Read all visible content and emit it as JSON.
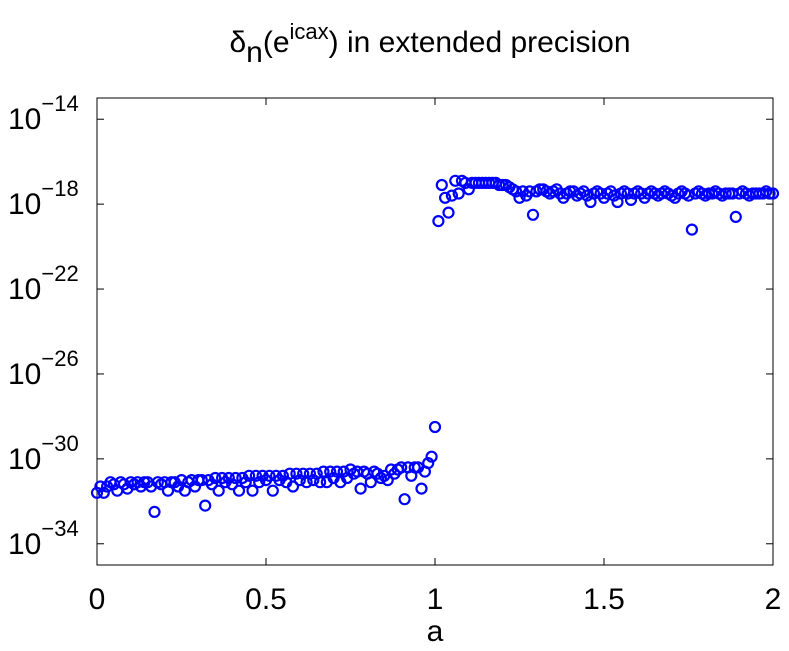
{
  "chart_data": {
    "type": "scatter",
    "title": {
      "base": "δ",
      "subscript": "n",
      "middle": "(e",
      "superscript": "icax",
      "tail": ") in extended precision"
    },
    "xlabel": "a",
    "ylabel": "",
    "xlim": [
      0,
      2
    ],
    "ylim_exponent": [
      -35,
      -13
    ],
    "yscale": "log",
    "grid": false,
    "x_ticks": [
      {
        "value": 0,
        "label": "0"
      },
      {
        "value": 0.5,
        "label": "0.5"
      },
      {
        "value": 1,
        "label": "1"
      },
      {
        "value": 1.5,
        "label": "1.5"
      },
      {
        "value": 2,
        "label": "2"
      }
    ],
    "y_ticks": [
      {
        "exp": -14,
        "base": "10",
        "power": "−14"
      },
      {
        "exp": -18,
        "base": "10",
        "power": "−18"
      },
      {
        "exp": -22,
        "base": "10",
        "power": "−22"
      },
      {
        "exp": -26,
        "base": "10",
        "power": "−26"
      },
      {
        "exp": -30,
        "base": "10",
        "power": "−30"
      },
      {
        "exp": -34,
        "base": "10",
        "power": "−34"
      }
    ],
    "marker": "circle",
    "color": "#0000ff",
    "series": [
      {
        "points_log10": [
          [
            0.0,
            -31.6
          ],
          [
            0.01,
            -31.3
          ],
          [
            0.02,
            -31.6
          ],
          [
            0.03,
            -31.3
          ],
          [
            0.04,
            -31.1
          ],
          [
            0.05,
            -31.2
          ],
          [
            0.06,
            -31.5
          ],
          [
            0.07,
            -31.1
          ],
          [
            0.08,
            -31.2
          ],
          [
            0.09,
            -31.4
          ],
          [
            0.1,
            -31.1
          ],
          [
            0.11,
            -31.2
          ],
          [
            0.12,
            -31.1
          ],
          [
            0.13,
            -31.3
          ],
          [
            0.14,
            -31.1
          ],
          [
            0.15,
            -31.1
          ],
          [
            0.16,
            -31.3
          ],
          [
            0.17,
            -32.5
          ],
          [
            0.18,
            -31.1
          ],
          [
            0.19,
            -31.2
          ],
          [
            0.2,
            -31.1
          ],
          [
            0.21,
            -31.5
          ],
          [
            0.22,
            -31.1
          ],
          [
            0.23,
            -31.1
          ],
          [
            0.24,
            -31.3
          ],
          [
            0.25,
            -31.0
          ],
          [
            0.26,
            -31.5
          ],
          [
            0.27,
            -31.1
          ],
          [
            0.28,
            -31.0
          ],
          [
            0.29,
            -31.3
          ],
          [
            0.3,
            -31.0
          ],
          [
            0.31,
            -31.0
          ],
          [
            0.32,
            -32.2
          ],
          [
            0.33,
            -31.0
          ],
          [
            0.34,
            -31.2
          ],
          [
            0.35,
            -30.9
          ],
          [
            0.36,
            -31.5
          ],
          [
            0.37,
            -30.9
          ],
          [
            0.38,
            -31.1
          ],
          [
            0.39,
            -30.9
          ],
          [
            0.4,
            -31.2
          ],
          [
            0.41,
            -30.9
          ],
          [
            0.42,
            -31.5
          ],
          [
            0.43,
            -30.9
          ],
          [
            0.44,
            -31.1
          ],
          [
            0.45,
            -30.8
          ],
          [
            0.46,
            -31.5
          ],
          [
            0.47,
            -30.8
          ],
          [
            0.48,
            -31.1
          ],
          [
            0.49,
            -30.8
          ],
          [
            0.5,
            -31.0
          ],
          [
            0.51,
            -30.8
          ],
          [
            0.52,
            -31.5
          ],
          [
            0.53,
            -30.8
          ],
          [
            0.54,
            -31.0
          ],
          [
            0.55,
            -30.8
          ],
          [
            0.56,
            -31.1
          ],
          [
            0.57,
            -30.7
          ],
          [
            0.58,
            -31.3
          ],
          [
            0.59,
            -30.7
          ],
          [
            0.6,
            -31.0
          ],
          [
            0.61,
            -30.7
          ],
          [
            0.62,
            -31.1
          ],
          [
            0.63,
            -30.7
          ],
          [
            0.64,
            -31.0
          ],
          [
            0.65,
            -30.7
          ],
          [
            0.66,
            -31.1
          ],
          [
            0.67,
            -30.6
          ],
          [
            0.68,
            -31.1
          ],
          [
            0.69,
            -30.6
          ],
          [
            0.7,
            -30.9
          ],
          [
            0.71,
            -30.6
          ],
          [
            0.72,
            -31.1
          ],
          [
            0.73,
            -30.6
          ],
          [
            0.74,
            -30.9
          ],
          [
            0.75,
            -30.5
          ],
          [
            0.76,
            -30.7
          ],
          [
            0.77,
            -30.6
          ],
          [
            0.78,
            -31.4
          ],
          [
            0.79,
            -30.6
          ],
          [
            0.8,
            -30.7
          ],
          [
            0.81,
            -31.1
          ],
          [
            0.82,
            -30.6
          ],
          [
            0.83,
            -30.7
          ],
          [
            0.84,
            -30.9
          ],
          [
            0.85,
            -30.8
          ],
          [
            0.86,
            -31.0
          ],
          [
            0.87,
            -30.5
          ],
          [
            0.88,
            -30.7
          ],
          [
            0.89,
            -30.5
          ],
          [
            0.9,
            -30.4
          ],
          [
            0.91,
            -31.9
          ],
          [
            0.92,
            -30.4
          ],
          [
            0.93,
            -30.8
          ],
          [
            0.94,
            -30.4
          ],
          [
            0.95,
            -30.4
          ],
          [
            0.96,
            -31.4
          ],
          [
            0.97,
            -30.6
          ],
          [
            0.98,
            -30.2
          ],
          [
            0.99,
            -29.9
          ],
          [
            1.0,
            -28.5
          ],
          [
            1.01,
            -18.8
          ],
          [
            1.02,
            -17.1
          ],
          [
            1.03,
            -17.7
          ],
          [
            1.04,
            -18.4
          ],
          [
            1.05,
            -17.6
          ],
          [
            1.06,
            -16.9
          ],
          [
            1.07,
            -17.5
          ],
          [
            1.08,
            -16.9
          ],
          [
            1.09,
            -17.0
          ],
          [
            1.1,
            -17.3
          ],
          [
            1.11,
            -17.0
          ],
          [
            1.12,
            -17.0
          ],
          [
            1.13,
            -17.0
          ],
          [
            1.14,
            -17.0
          ],
          [
            1.15,
            -17.0
          ],
          [
            1.16,
            -17.0
          ],
          [
            1.17,
            -17.0
          ],
          [
            1.18,
            -17.0
          ],
          [
            1.19,
            -17.1
          ],
          [
            1.2,
            -17.1
          ],
          [
            1.21,
            -17.1
          ],
          [
            1.22,
            -17.2
          ],
          [
            1.23,
            -17.3
          ],
          [
            1.24,
            -17.4
          ],
          [
            1.25,
            -17.7
          ],
          [
            1.26,
            -17.4
          ],
          [
            1.27,
            -17.6
          ],
          [
            1.28,
            -17.4
          ],
          [
            1.29,
            -18.5
          ],
          [
            1.3,
            -17.4
          ],
          [
            1.31,
            -17.3
          ],
          [
            1.32,
            -17.3
          ],
          [
            1.33,
            -17.4
          ],
          [
            1.34,
            -17.5
          ],
          [
            1.35,
            -17.4
          ],
          [
            1.36,
            -17.3
          ],
          [
            1.37,
            -17.5
          ],
          [
            1.38,
            -17.7
          ],
          [
            1.39,
            -17.5
          ],
          [
            1.4,
            -17.4
          ],
          [
            1.41,
            -17.4
          ],
          [
            1.42,
            -17.6
          ],
          [
            1.43,
            -17.5
          ],
          [
            1.44,
            -17.4
          ],
          [
            1.45,
            -17.6
          ],
          [
            1.46,
            -17.9
          ],
          [
            1.47,
            -17.5
          ],
          [
            1.48,
            -17.4
          ],
          [
            1.49,
            -17.5
          ],
          [
            1.5,
            -17.7
          ],
          [
            1.51,
            -17.5
          ],
          [
            1.52,
            -17.4
          ],
          [
            1.53,
            -17.6
          ],
          [
            1.54,
            -17.9
          ],
          [
            1.55,
            -17.5
          ],
          [
            1.56,
            -17.4
          ],
          [
            1.57,
            -17.5
          ],
          [
            1.58,
            -17.8
          ],
          [
            1.59,
            -17.5
          ],
          [
            1.6,
            -17.4
          ],
          [
            1.61,
            -17.5
          ],
          [
            1.62,
            -17.7
          ],
          [
            1.63,
            -17.5
          ],
          [
            1.64,
            -17.4
          ],
          [
            1.65,
            -17.5
          ],
          [
            1.66,
            -17.6
          ],
          [
            1.67,
            -17.5
          ],
          [
            1.68,
            -17.4
          ],
          [
            1.69,
            -17.5
          ],
          [
            1.7,
            -17.6
          ],
          [
            1.71,
            -17.7
          ],
          [
            1.72,
            -17.5
          ],
          [
            1.73,
            -17.4
          ],
          [
            1.74,
            -17.5
          ],
          [
            1.75,
            -17.6
          ],
          [
            1.76,
            -19.2
          ],
          [
            1.77,
            -17.5
          ],
          [
            1.78,
            -17.4
          ],
          [
            1.79,
            -17.5
          ],
          [
            1.8,
            -17.6
          ],
          [
            1.81,
            -17.5
          ],
          [
            1.82,
            -17.5
          ],
          [
            1.83,
            -17.4
          ],
          [
            1.84,
            -17.5
          ],
          [
            1.85,
            -17.6
          ],
          [
            1.86,
            -17.5
          ],
          [
            1.87,
            -17.5
          ],
          [
            1.88,
            -17.5
          ],
          [
            1.89,
            -18.6
          ],
          [
            1.9,
            -17.5
          ],
          [
            1.91,
            -17.4
          ],
          [
            1.92,
            -17.5
          ],
          [
            1.93,
            -17.6
          ],
          [
            1.94,
            -17.5
          ],
          [
            1.95,
            -17.5
          ],
          [
            1.96,
            -17.5
          ],
          [
            1.97,
            -17.5
          ],
          [
            1.98,
            -17.4
          ],
          [
            1.99,
            -17.5
          ],
          [
            2.0,
            -17.5
          ]
        ]
      }
    ]
  }
}
